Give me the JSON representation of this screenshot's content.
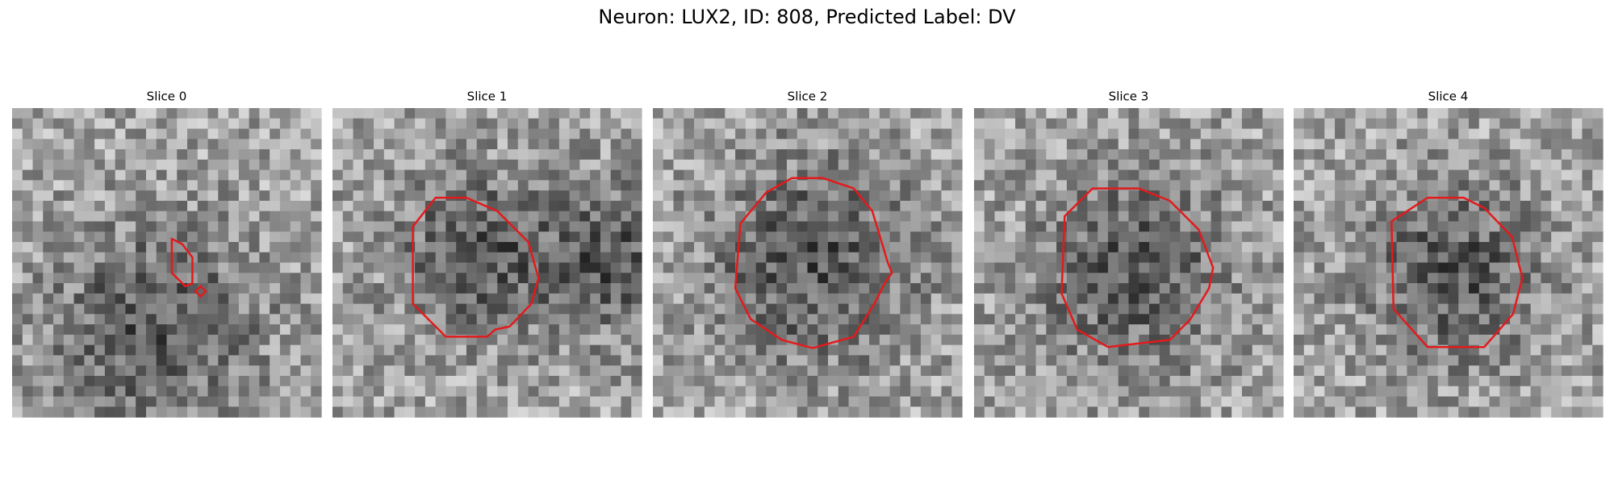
{
  "header": {
    "title": "Neuron: LUX2, ID: 808, Predicted Label: DV"
  },
  "panels": [
    {
      "title": "Slice 0"
    },
    {
      "title": "Slice 1"
    },
    {
      "title": "Slice 2"
    },
    {
      "title": "Slice 3"
    },
    {
      "title": "Slice 4"
    }
  ]
}
